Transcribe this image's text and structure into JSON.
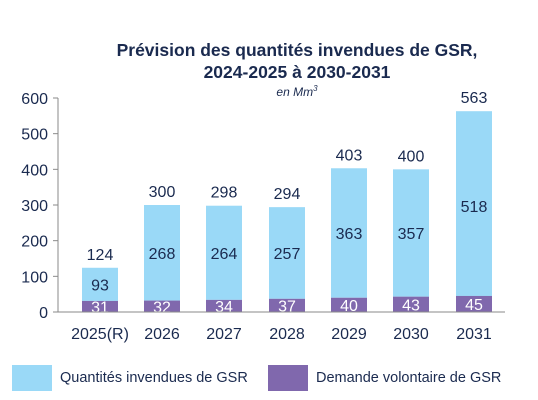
{
  "chart_data": {
    "type": "bar",
    "stacked": true,
    "title_line1": "Prévision des quantités invendues de GSR,",
    "title_line2": "2024-2025 à 2030-2031",
    "subtitle_text": "en Mm",
    "subtitle_sup": "3",
    "categories": [
      "2025(R)",
      "2026",
      "2027",
      "2028",
      "2029",
      "2030",
      "2031"
    ],
    "series": [
      {
        "name": "Demande volontaire de GSR",
        "color": "#8068ad",
        "values": [
          31,
          32,
          34,
          37,
          40,
          43,
          45
        ]
      },
      {
        "name": "Quantités invendues de GSR",
        "color": "#9ad9f7",
        "values": [
          93,
          268,
          264,
          257,
          363,
          357,
          518
        ]
      }
    ],
    "totals": [
      124,
      300,
      298,
      294,
      403,
      400,
      563
    ],
    "ylim": [
      0,
      600
    ],
    "yticks": [
      "0",
      "100",
      "200",
      "300",
      "400",
      "500",
      "600"
    ],
    "xlabel": "",
    "ylabel": "",
    "grid": false,
    "legend_position": "bottom"
  }
}
